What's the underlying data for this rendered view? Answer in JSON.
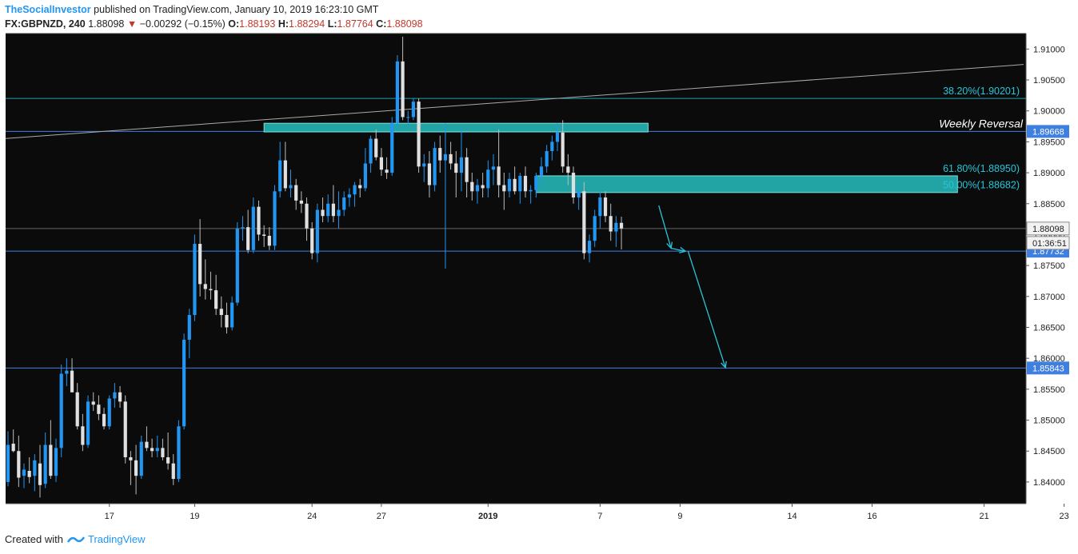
{
  "header": {
    "author": "TheSocialInvestor",
    "published": "published on TradingView.com, January 10, 2019 16:23:10 GMT",
    "symbol": "FX:GBPNZD, 240",
    "last": "1.88098",
    "change": "−0.00292 (−0.15%)",
    "o_label": "O:",
    "o": "1.88193",
    "h_label": "H:",
    "h": "1.88294",
    "l_label": "L:",
    "l": "1.87764",
    "c_label": "C:",
    "c": "1.88098"
  },
  "footer": {
    "created": "Created with",
    "brand": "TradingView"
  },
  "colors": {
    "up": "#2196f3",
    "down": "#e0e0e0",
    "background": "#0b0b0b",
    "zone": "#26b5b5",
    "hline": "#3f7fe0",
    "fib": "#26c6da",
    "arrow": "#26c6da"
  },
  "chart_data": {
    "type": "candlestick",
    "ylim": [
      1.8365,
      1.9125
    ],
    "y_ticks": [
      "1.84000",
      "1.84500",
      "1.85000",
      "1.85500",
      "1.86000",
      "1.86500",
      "1.87000",
      "1.87500",
      "1.88000",
      "1.88500",
      "1.89000",
      "1.89500",
      "1.90000",
      "1.90500",
      "1.91000"
    ],
    "x_ticks": [
      {
        "i": 19,
        "label": "17"
      },
      {
        "i": 35,
        "label": "19"
      },
      {
        "i": 57,
        "label": "24"
      },
      {
        "i": 70,
        "label": "27"
      },
      {
        "i": 90,
        "label": "2019"
      },
      {
        "i": 111,
        "label": "7"
      },
      {
        "i": 126,
        "label": "9"
      },
      {
        "i": 147,
        "label": "14"
      },
      {
        "i": 162,
        "label": "16"
      },
      {
        "i": 183,
        "label": "21"
      },
      {
        "i": 198,
        "label": "23"
      }
    ],
    "candles": [
      {
        "o": 1.84,
        "h": 1.8482,
        "l": 1.8393,
        "c": 1.846
      },
      {
        "o": 1.8462,
        "h": 1.8485,
        "l": 1.8448,
        "c": 1.845
      },
      {
        "o": 1.845,
        "h": 1.8475,
        "l": 1.8392,
        "c": 1.8407
      },
      {
        "o": 1.841,
        "h": 1.843,
        "l": 1.839,
        "c": 1.842
      },
      {
        "o": 1.8418,
        "h": 1.844,
        "l": 1.8398,
        "c": 1.8408
      },
      {
        "o": 1.841,
        "h": 1.8445,
        "l": 1.8385,
        "c": 1.8435
      },
      {
        "o": 1.843,
        "h": 1.846,
        "l": 1.8375,
        "c": 1.8395
      },
      {
        "o": 1.8397,
        "h": 1.848,
        "l": 1.839,
        "c": 1.846
      },
      {
        "o": 1.846,
        "h": 1.85,
        "l": 1.8405,
        "c": 1.841
      },
      {
        "o": 1.841,
        "h": 1.847,
        "l": 1.84,
        "c": 1.8455
      },
      {
        "o": 1.8455,
        "h": 1.859,
        "l": 1.844,
        "c": 1.8575
      },
      {
        "o": 1.8575,
        "h": 1.86,
        "l": 1.8555,
        "c": 1.858
      },
      {
        "o": 1.858,
        "h": 1.86,
        "l": 1.8545,
        "c": 1.8545
      },
      {
        "o": 1.8545,
        "h": 1.856,
        "l": 1.8485,
        "c": 1.849
      },
      {
        "o": 1.849,
        "h": 1.851,
        "l": 1.845,
        "c": 1.846
      },
      {
        "o": 1.846,
        "h": 1.854,
        "l": 1.8455,
        "c": 1.853
      },
      {
        "o": 1.853,
        "h": 1.8545,
        "l": 1.8515,
        "c": 1.8525
      },
      {
        "o": 1.8525,
        "h": 1.854,
        "l": 1.85,
        "c": 1.851
      },
      {
        "o": 1.851,
        "h": 1.852,
        "l": 1.8485,
        "c": 1.849
      },
      {
        "o": 1.849,
        "h": 1.854,
        "l": 1.8485,
        "c": 1.8535
      },
      {
        "o": 1.8535,
        "h": 1.856,
        "l": 1.852,
        "c": 1.8545
      },
      {
        "o": 1.8545,
        "h": 1.8555,
        "l": 1.852,
        "c": 1.853
      },
      {
        "o": 1.853,
        "h": 1.854,
        "l": 1.843,
        "c": 1.844
      },
      {
        "o": 1.844,
        "h": 1.845,
        "l": 1.8395,
        "c": 1.8435
      },
      {
        "o": 1.8435,
        "h": 1.846,
        "l": 1.838,
        "c": 1.841
      },
      {
        "o": 1.841,
        "h": 1.8475,
        "l": 1.8405,
        "c": 1.8465
      },
      {
        "o": 1.8465,
        "h": 1.849,
        "l": 1.845,
        "c": 1.8455
      },
      {
        "o": 1.8455,
        "h": 1.847,
        "l": 1.844,
        "c": 1.845
      },
      {
        "o": 1.845,
        "h": 1.8475,
        "l": 1.844,
        "c": 1.8455
      },
      {
        "o": 1.8455,
        "h": 1.847,
        "l": 1.8435,
        "c": 1.844
      },
      {
        "o": 1.844,
        "h": 1.848,
        "l": 1.842,
        "c": 1.843
      },
      {
        "o": 1.843,
        "h": 1.8445,
        "l": 1.8395,
        "c": 1.8405
      },
      {
        "o": 1.8405,
        "h": 1.85,
        "l": 1.84,
        "c": 1.849
      },
      {
        "o": 1.849,
        "h": 1.864,
        "l": 1.8485,
        "c": 1.863
      },
      {
        "o": 1.863,
        "h": 1.868,
        "l": 1.86,
        "c": 1.867
      },
      {
        "o": 1.867,
        "h": 1.88,
        "l": 1.866,
        "c": 1.8785
      },
      {
        "o": 1.8785,
        "h": 1.8825,
        "l": 1.87,
        "c": 1.872
      },
      {
        "o": 1.872,
        "h": 1.876,
        "l": 1.8695,
        "c": 1.8712
      },
      {
        "o": 1.8712,
        "h": 1.874,
        "l": 1.8695,
        "c": 1.871
      },
      {
        "o": 1.871,
        "h": 1.8735,
        "l": 1.867,
        "c": 1.868
      },
      {
        "o": 1.868,
        "h": 1.87,
        "l": 1.865,
        "c": 1.867
      },
      {
        "o": 1.867,
        "h": 1.869,
        "l": 1.864,
        "c": 1.865
      },
      {
        "o": 1.865,
        "h": 1.87,
        "l": 1.8645,
        "c": 1.869
      },
      {
        "o": 1.869,
        "h": 1.882,
        "l": 1.8685,
        "c": 1.881
      },
      {
        "o": 1.881,
        "h": 1.883,
        "l": 1.879,
        "c": 1.8812
      },
      {
        "o": 1.8812,
        "h": 1.884,
        "l": 1.877,
        "c": 1.8775
      },
      {
        "o": 1.8775,
        "h": 1.886,
        "l": 1.877,
        "c": 1.8845
      },
      {
        "o": 1.8845,
        "h": 1.8855,
        "l": 1.879,
        "c": 1.88
      },
      {
        "o": 1.88,
        "h": 1.8815,
        "l": 1.878,
        "c": 1.8798
      },
      {
        "o": 1.8798,
        "h": 1.8812,
        "l": 1.8775,
        "c": 1.8782
      },
      {
        "o": 1.8782,
        "h": 1.888,
        "l": 1.8775,
        "c": 1.887
      },
      {
        "o": 1.887,
        "h": 1.895,
        "l": 1.886,
        "c": 1.892
      },
      {
        "o": 1.892,
        "h": 1.895,
        "l": 1.887,
        "c": 1.8875
      },
      {
        "o": 1.8875,
        "h": 1.8905,
        "l": 1.886,
        "c": 1.888
      },
      {
        "o": 1.888,
        "h": 1.889,
        "l": 1.884,
        "c": 1.8855
      },
      {
        "o": 1.8855,
        "h": 1.887,
        "l": 1.8835,
        "c": 1.885
      },
      {
        "o": 1.885,
        "h": 1.886,
        "l": 1.879,
        "c": 1.881
      },
      {
        "o": 1.881,
        "h": 1.882,
        "l": 1.876,
        "c": 1.877
      },
      {
        "o": 1.877,
        "h": 1.885,
        "l": 1.8755,
        "c": 1.884
      },
      {
        "o": 1.884,
        "h": 1.886,
        "l": 1.882,
        "c": 1.883
      },
      {
        "o": 1.883,
        "h": 1.8865,
        "l": 1.882,
        "c": 1.885
      },
      {
        "o": 1.885,
        "h": 1.888,
        "l": 1.882,
        "c": 1.883
      },
      {
        "o": 1.883,
        "h": 1.887,
        "l": 1.881,
        "c": 1.884
      },
      {
        "o": 1.884,
        "h": 1.887,
        "l": 1.883,
        "c": 1.886
      },
      {
        "o": 1.886,
        "h": 1.8875,
        "l": 1.8845,
        "c": 1.8865
      },
      {
        "o": 1.8865,
        "h": 1.8885,
        "l": 1.8845,
        "c": 1.888
      },
      {
        "o": 1.888,
        "h": 1.889,
        "l": 1.886,
        "c": 1.8875
      },
      {
        "o": 1.8875,
        "h": 1.894,
        "l": 1.887,
        "c": 1.8915
      },
      {
        "o": 1.8915,
        "h": 1.896,
        "l": 1.89,
        "c": 1.8955
      },
      {
        "o": 1.8955,
        "h": 1.897,
        "l": 1.892,
        "c": 1.8925
      },
      {
        "o": 1.8925,
        "h": 1.894,
        "l": 1.8895,
        "c": 1.8905
      },
      {
        "o": 1.8905,
        "h": 1.8925,
        "l": 1.889,
        "c": 1.89
      },
      {
        "o": 1.89,
        "h": 1.899,
        "l": 1.8895,
        "c": 1.898
      },
      {
        "o": 1.898,
        "h": 1.909,
        "l": 1.897,
        "c": 1.908
      },
      {
        "o": 1.908,
        "h": 1.912,
        "l": 1.8985,
        "c": 1.899
      },
      {
        "o": 1.899,
        "h": 1.9,
        "l": 1.8975,
        "c": 1.899
      },
      {
        "o": 1.899,
        "h": 1.902,
        "l": 1.8985,
        "c": 1.9015
      },
      {
        "o": 1.9015,
        "h": 1.902,
        "l": 1.89,
        "c": 1.891
      },
      {
        "o": 1.891,
        "h": 1.893,
        "l": 1.8885,
        "c": 1.8915
      },
      {
        "o": 1.8915,
        "h": 1.8935,
        "l": 1.886,
        "c": 1.888
      },
      {
        "o": 1.888,
        "h": 1.895,
        "l": 1.887,
        "c": 1.894
      },
      {
        "o": 1.894,
        "h": 1.896,
        "l": 1.89,
        "c": 1.892
      },
      {
        "o": 1.892,
        "h": 1.898,
        "l": 1.8745,
        "c": 1.893
      },
      {
        "o": 1.893,
        "h": 1.895,
        "l": 1.8905,
        "c": 1.8915
      },
      {
        "o": 1.8915,
        "h": 1.8935,
        "l": 1.886,
        "c": 1.89
      },
      {
        "o": 1.89,
        "h": 1.897,
        "l": 1.887,
        "c": 1.8925
      },
      {
        "o": 1.8925,
        "h": 1.894,
        "l": 1.886,
        "c": 1.8885
      },
      {
        "o": 1.8885,
        "h": 1.89,
        "l": 1.8855,
        "c": 1.887
      },
      {
        "o": 1.887,
        "h": 1.889,
        "l": 1.885,
        "c": 1.888
      },
      {
        "o": 1.888,
        "h": 1.89,
        "l": 1.886,
        "c": 1.8875
      },
      {
        "o": 1.8875,
        "h": 1.892,
        "l": 1.886,
        "c": 1.8905
      },
      {
        "o": 1.8905,
        "h": 1.893,
        "l": 1.888,
        "c": 1.891
      },
      {
        "o": 1.891,
        "h": 1.897,
        "l": 1.886,
        "c": 1.888
      },
      {
        "o": 1.888,
        "h": 1.89,
        "l": 1.884,
        "c": 1.887
      },
      {
        "o": 1.887,
        "h": 1.89,
        "l": 1.886,
        "c": 1.889
      },
      {
        "o": 1.889,
        "h": 1.891,
        "l": 1.8865,
        "c": 1.887
      },
      {
        "o": 1.887,
        "h": 1.89,
        "l": 1.885,
        "c": 1.8895
      },
      {
        "o": 1.8895,
        "h": 1.891,
        "l": 1.886,
        "c": 1.887
      },
      {
        "o": 1.887,
        "h": 1.888,
        "l": 1.885,
        "c": 1.8872
      },
      {
        "o": 1.8872,
        "h": 1.89,
        "l": 1.886,
        "c": 1.8895
      },
      {
        "o": 1.8895,
        "h": 1.8925,
        "l": 1.888,
        "c": 1.891
      },
      {
        "o": 1.891,
        "h": 1.8945,
        "l": 1.89,
        "c": 1.8935
      },
      {
        "o": 1.8935,
        "h": 1.896,
        "l": 1.892,
        "c": 1.895
      },
      {
        "o": 1.895,
        "h": 1.898,
        "l": 1.8935,
        "c": 1.8965
      },
      {
        "o": 1.8965,
        "h": 1.8985,
        "l": 1.89,
        "c": 1.891
      },
      {
        "o": 1.891,
        "h": 1.893,
        "l": 1.888,
        "c": 1.89
      },
      {
        "o": 1.89,
        "h": 1.891,
        "l": 1.885,
        "c": 1.886
      },
      {
        "o": 1.886,
        "h": 1.888,
        "l": 1.884,
        "c": 1.887
      },
      {
        "o": 1.887,
        "h": 1.8885,
        "l": 1.876,
        "c": 1.877
      },
      {
        "o": 1.877,
        "h": 1.88,
        "l": 1.8755,
        "c": 1.879
      },
      {
        "o": 1.879,
        "h": 1.884,
        "l": 1.878,
        "c": 1.883
      },
      {
        "o": 1.883,
        "h": 1.887,
        "l": 1.881,
        "c": 1.886
      },
      {
        "o": 1.886,
        "h": 1.887,
        "l": 1.882,
        "c": 1.883
      },
      {
        "o": 1.883,
        "h": 1.885,
        "l": 1.879,
        "c": 1.8805
      },
      {
        "o": 1.8805,
        "h": 1.883,
        "l": 1.878,
        "c": 1.8819
      },
      {
        "o": 1.8819,
        "h": 1.8829,
        "l": 1.8776,
        "c": 1.881
      }
    ],
    "levels": [
      {
        "label": "1.89668",
        "value": 1.89668
      },
      {
        "label": "1.88098",
        "value": 1.88098
      },
      {
        "label": "1.87732",
        "value": 1.87732
      },
      {
        "label": "1.85843",
        "value": 1.85843
      }
    ],
    "countdown": "01:36:51",
    "fibs": [
      {
        "label": "38.20%(1.90201)",
        "value": 1.90201
      },
      {
        "label": "61.80%(1.88950)",
        "value": 1.8895
      },
      {
        "label": "50.00%(1.88682)",
        "value": 1.88682
      }
    ],
    "annotations": {
      "weekly_reversal": "Weekly Reversal"
    },
    "zones": [
      {
        "i0": 48,
        "i1": 120,
        "top": 1.898,
        "bottom": 1.8966
      },
      {
        "i0": 99,
        "i1": 178,
        "top": 1.8895,
        "bottom": 1.8868
      }
    ],
    "trendline": {
      "i0": -1,
      "v0": 1.8955,
      "i1": 198.5,
      "v1": 1.9075
    },
    "projection": [
      {
        "i": 122,
        "v": 1.8847
      },
      {
        "i": 124.3,
        "v": 1.8778
      },
      {
        "i": 124.3,
        "v": 1.8778
      },
      {
        "i": 127,
        "v": 1.8773
      },
      {
        "i": 127.5,
        "v": 1.8773
      },
      {
        "i": 134.5,
        "v": 1.8585
      }
    ]
  }
}
